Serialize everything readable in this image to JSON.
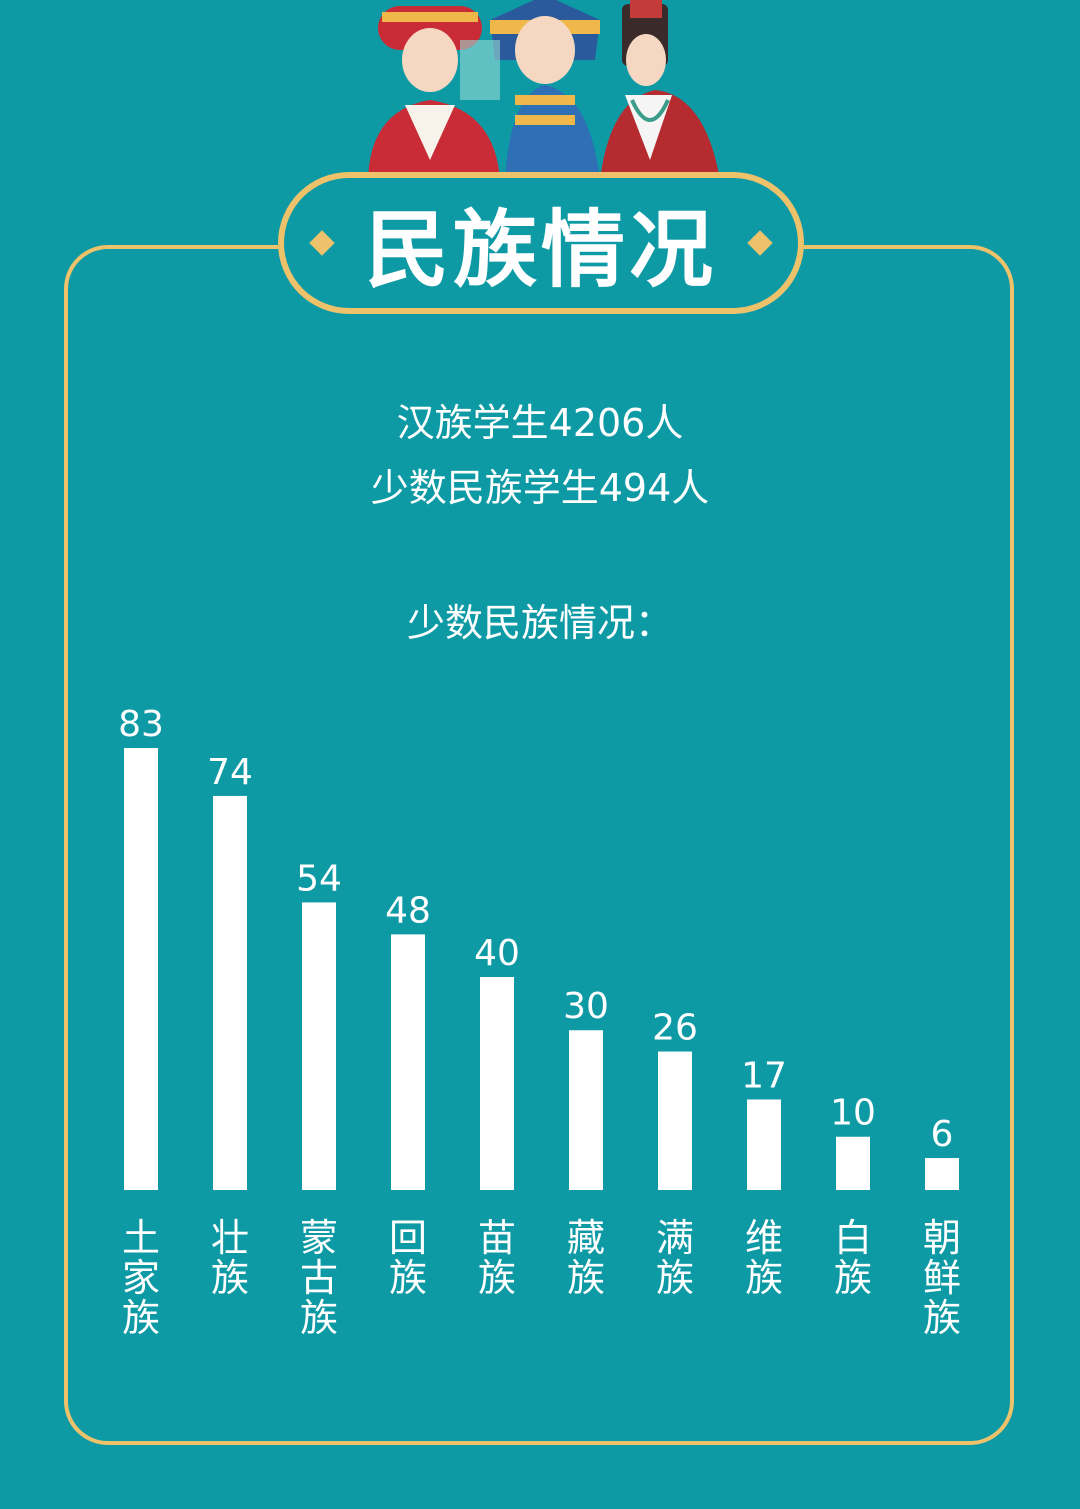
{
  "header": {
    "title": "民族情况"
  },
  "summary": {
    "han_line": "汉族学生4206人",
    "minority_line": "少数民族学生494人"
  },
  "section_label": "少数民族情况：",
  "colors": {
    "background": "#0e9aa4",
    "frame_gold": "#eec26b",
    "bar": "#ffffff",
    "text": "#ffffff"
  },
  "chart_data": {
    "type": "bar",
    "title": "少数民族情况：",
    "categories": [
      "土家族",
      "壮族",
      "蒙古族",
      "回族",
      "苗族",
      "藏族",
      "满族",
      "维族",
      "白族",
      "朝鲜族"
    ],
    "values": [
      83,
      74,
      54,
      48,
      40,
      30,
      26,
      17,
      10,
      6
    ],
    "xlabel": "",
    "ylabel": "",
    "ylim": [
      0,
      83
    ],
    "grid": false,
    "legend": "none"
  }
}
